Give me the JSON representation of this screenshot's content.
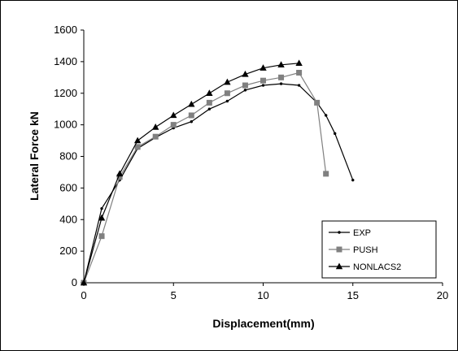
{
  "chart_data": {
    "type": "line",
    "xlabel": "Displacement(mm)",
    "ylabel": "Lateral Force kN",
    "xlim": [
      0,
      20
    ],
    "ylim": [
      0,
      1600
    ],
    "xticks": [
      0,
      5,
      10,
      15,
      20
    ],
    "yticks": [
      0,
      200,
      400,
      600,
      800,
      1000,
      1200,
      1400,
      1600
    ],
    "grid": false,
    "legend_position": "bottom-right",
    "series": [
      {
        "name": "EXP",
        "marker": "dot",
        "color": "#000000",
        "x": [
          0,
          1,
          2,
          3,
          4,
          5,
          6,
          7,
          8,
          9,
          10,
          11,
          12,
          13,
          13.5,
          14,
          15
        ],
        "y": [
          0,
          470,
          650,
          850,
          920,
          980,
          1020,
          1100,
          1150,
          1220,
          1250,
          1260,
          1250,
          1140,
          1060,
          945,
          650
        ]
      },
      {
        "name": "PUSH",
        "marker": "square",
        "color": "#808080",
        "x": [
          0,
          1,
          2,
          3,
          4,
          5,
          6,
          7,
          8,
          9,
          10,
          11,
          12,
          13,
          13.5
        ],
        "y": [
          0,
          295,
          670,
          860,
          925,
          1000,
          1060,
          1140,
          1200,
          1250,
          1280,
          1300,
          1330,
          1140,
          690
        ]
      },
      {
        "name": "NONLACS2",
        "marker": "triangle",
        "color": "#000000",
        "x": [
          0,
          1,
          2,
          3,
          4,
          5,
          6,
          7,
          8,
          9,
          10,
          11,
          12
        ],
        "y": [
          0,
          410,
          690,
          900,
          985,
          1060,
          1130,
          1200,
          1270,
          1320,
          1360,
          1380,
          1390
        ]
      }
    ]
  }
}
